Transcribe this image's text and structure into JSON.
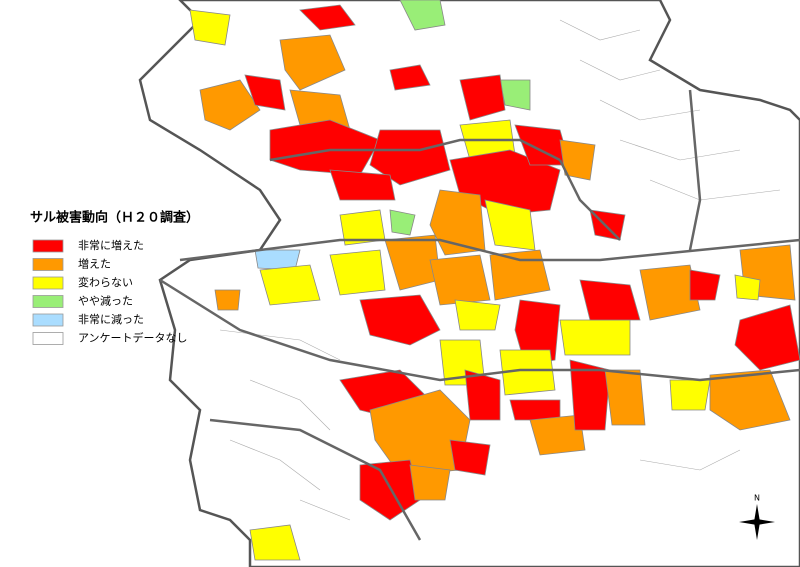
{
  "legend": {
    "title": "サル被害動向（Ｈ２０調査）",
    "items": [
      {
        "label": "非常に増えた",
        "color": "#ff0000"
      },
      {
        "label": "増えた",
        "color": "#ff9900"
      },
      {
        "label": "変わらない",
        "color": "#ffff00"
      },
      {
        "label": "やや減った",
        "color": "#99ee77"
      },
      {
        "label": "非常に減った",
        "color": "#aaddff"
      },
      {
        "label": "アンケートデータなし",
        "color": "#ffffff"
      }
    ]
  },
  "compass": "N"
}
